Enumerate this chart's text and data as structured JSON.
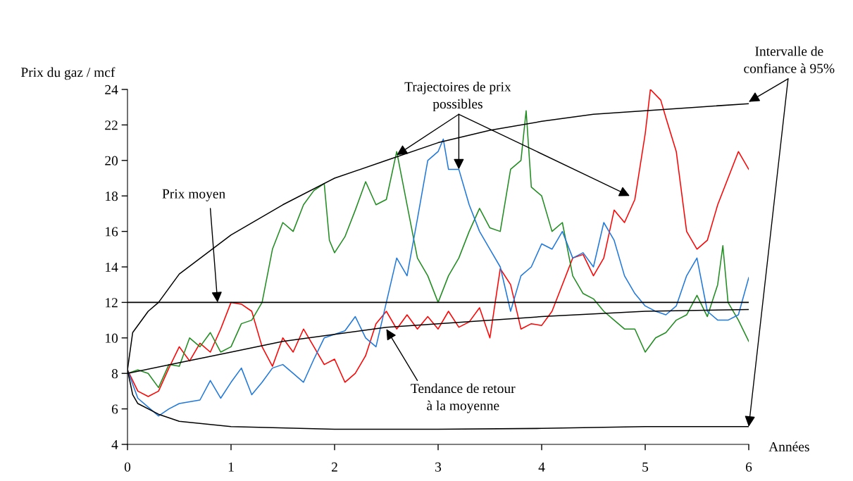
{
  "chart_data": {
    "type": "line",
    "ylabel": "Prix du gaz / mcf",
    "xlabel": "Années",
    "xlim": [
      0,
      6
    ],
    "ylim": [
      4,
      24
    ],
    "xticks": [
      0,
      1,
      2,
      3,
      4,
      5,
      6
    ],
    "yticks": [
      4,
      6,
      8,
      10,
      12,
      14,
      16,
      18,
      20,
      22,
      24
    ],
    "grid": false,
    "legend": false,
    "marker": "none",
    "line_style": "solid",
    "series": [
      {
        "color": "#ff0000",
        "x": [
          0,
          0.1,
          0.2,
          0.3,
          0.4,
          0.5,
          0.6,
          0.7,
          0.8,
          0.9,
          1.0,
          1.1,
          1.2,
          1.3,
          1.4,
          1.5,
          1.6,
          1.7,
          1.8,
          1.9,
          2.0,
          2.1,
          2.2,
          2.3,
          2.4,
          2.5,
          2.6,
          2.7,
          2.8,
          2.9,
          3.0,
          3.1,
          3.2,
          3.3,
          3.4,
          3.5,
          3.6,
          3.7,
          3.8,
          3.9,
          4.0,
          4.1,
          4.2,
          4.3,
          4.4,
          4.5,
          4.6,
          4.7,
          4.8,
          4.9,
          5.0,
          5.05,
          5.15,
          5.2,
          5.3,
          5.4,
          5.5,
          5.6,
          5.7,
          5.8,
          5.9,
          6.0
        ],
        "values": [
          8.2,
          7.0,
          6.7,
          7.0,
          8.3,
          9.5,
          8.7,
          9.7,
          9.2,
          10.5,
          12.0,
          11.9,
          11.5,
          9.5,
          8.4,
          10.0,
          9.2,
          10.5,
          9.5,
          8.5,
          8.8,
          7.5,
          8.0,
          9.0,
          10.8,
          11.5,
          10.5,
          11.3,
          10.5,
          11.2,
          10.5,
          11.5,
          10.6,
          10.9,
          11.7,
          10.0,
          13.9,
          13.0,
          10.5,
          10.8,
          10.7,
          11.5,
          13.0,
          14.5,
          14.7,
          13.5,
          14.5,
          17.2,
          16.5,
          17.8,
          21.5,
          24.0,
          23.4,
          22.4,
          20.5,
          16.0,
          15.0,
          15.5,
          17.5,
          19.0,
          20.5,
          19.5
        ]
      },
      {
        "color": "#1f8c1f",
        "x": [
          0,
          0.1,
          0.2,
          0.3,
          0.4,
          0.5,
          0.6,
          0.7,
          0.8,
          0.9,
          1.0,
          1.1,
          1.2,
          1.3,
          1.4,
          1.5,
          1.6,
          1.7,
          1.8,
          1.9,
          1.95,
          2.0,
          2.1,
          2.2,
          2.3,
          2.4,
          2.5,
          2.6,
          2.7,
          2.8,
          2.9,
          3.0,
          3.1,
          3.2,
          3.3,
          3.4,
          3.5,
          3.6,
          3.7,
          3.8,
          3.85,
          3.9,
          4.0,
          4.1,
          4.2,
          4.3,
          4.4,
          4.5,
          4.6,
          4.7,
          4.8,
          4.9,
          5.0,
          5.1,
          5.2,
          5.3,
          5.4,
          5.5,
          5.6,
          5.7,
          5.75,
          5.8,
          5.9,
          6.0
        ],
        "values": [
          8.0,
          8.2,
          8.0,
          7.2,
          8.5,
          8.4,
          10.0,
          9.5,
          10.3,
          9.2,
          9.5,
          10.8,
          11.0,
          12.0,
          15.0,
          16.5,
          16.0,
          17.5,
          18.3,
          18.7,
          15.5,
          14.8,
          15.7,
          17.2,
          18.8,
          17.5,
          17.8,
          20.5,
          17.5,
          14.5,
          13.5,
          12.0,
          13.5,
          14.5,
          16.0,
          17.3,
          16.2,
          16.0,
          19.5,
          20.0,
          22.8,
          18.5,
          18.0,
          16.0,
          16.5,
          13.5,
          12.5,
          12.2,
          11.5,
          11.0,
          10.5,
          10.5,
          9.2,
          10.0,
          10.3,
          11.0,
          11.3,
          12.4,
          11.2,
          13.0,
          15.2,
          12.0,
          11.0,
          9.8
        ]
      },
      {
        "color": "#1e78dc",
        "x": [
          0,
          0.1,
          0.2,
          0.3,
          0.4,
          0.5,
          0.6,
          0.7,
          0.8,
          0.9,
          1.0,
          1.1,
          1.2,
          1.3,
          1.4,
          1.5,
          1.6,
          1.7,
          1.8,
          1.9,
          2.0,
          2.1,
          2.2,
          2.3,
          2.4,
          2.5,
          2.6,
          2.7,
          2.8,
          2.9,
          3.0,
          3.05,
          3.1,
          3.2,
          3.3,
          3.4,
          3.5,
          3.6,
          3.7,
          3.8,
          3.9,
          4.0,
          4.1,
          4.2,
          4.3,
          4.4,
          4.5,
          4.6,
          4.7,
          4.8,
          4.9,
          5.0,
          5.1,
          5.2,
          5.3,
          5.4,
          5.5,
          5.6,
          5.7,
          5.8,
          5.9,
          6.0
        ],
        "values": [
          8.2,
          6.6,
          6.1,
          5.6,
          6.0,
          6.3,
          6.4,
          6.5,
          7.6,
          6.6,
          7.5,
          8.3,
          6.8,
          7.5,
          8.3,
          8.5,
          8.0,
          7.5,
          8.8,
          10.0,
          10.2,
          10.4,
          11.2,
          10.0,
          9.5,
          12.0,
          14.5,
          13.5,
          16.7,
          20.0,
          20.5,
          21.2,
          19.5,
          19.5,
          17.5,
          16.0,
          15.0,
          14.0,
          11.5,
          13.5,
          14.0,
          15.3,
          15.0,
          16.0,
          14.5,
          14.8,
          14.0,
          16.5,
          15.5,
          13.5,
          12.5,
          11.8,
          11.5,
          11.3,
          11.8,
          13.5,
          14.5,
          11.5,
          11.0,
          11.0,
          11.3,
          13.4
        ]
      },
      {
        "color": "#000000",
        "x": [
          6.0,
          5.5,
          5.0,
          4.5,
          4.0,
          3.5,
          3.0,
          2.5,
          2.0,
          1.5,
          1.0,
          0.5,
          0.3,
          0.2,
          0.05,
          0,
          0.05,
          0.1,
          0.3,
          0.5,
          1.0,
          2.0,
          3.0,
          4.0,
          5.0,
          6.0
        ],
        "values": [
          23.2,
          23.0,
          22.8,
          22.6,
          22.2,
          21.7,
          21.0,
          20.0,
          19.0,
          17.5,
          15.8,
          13.6,
          12.0,
          11.5,
          10.3,
          8.2,
          6.8,
          6.3,
          5.7,
          5.3,
          5.0,
          4.85,
          4.85,
          4.9,
          5.0,
          5.0
        ]
      },
      {
        "color": "#000000",
        "x": [
          0,
          0.5,
          1,
          1.5,
          2,
          2.5,
          3,
          4,
          5,
          6
        ],
        "values": [
          8.0,
          8.6,
          9.2,
          9.8,
          10.2,
          10.6,
          10.8,
          11.2,
          11.5,
          11.6
        ]
      }
    ],
    "ref_lines": [
      {
        "axis": "y",
        "value": 12,
        "color": "#000000"
      }
    ],
    "annotations": [
      {
        "text": "Prix moyen",
        "x": 0.87,
        "y": 12
      },
      {
        "text": "Trajectoires de prix\npossibles",
        "x": 3.2,
        "y": 19.5
      },
      {
        "text": "Tendance de retour\nà la moyenne",
        "x": 2.5,
        "y": 10.5
      },
      {
        "text": "Intervalle de\nconfiance à 95%",
        "x": 6,
        "y": 23.3
      }
    ]
  }
}
